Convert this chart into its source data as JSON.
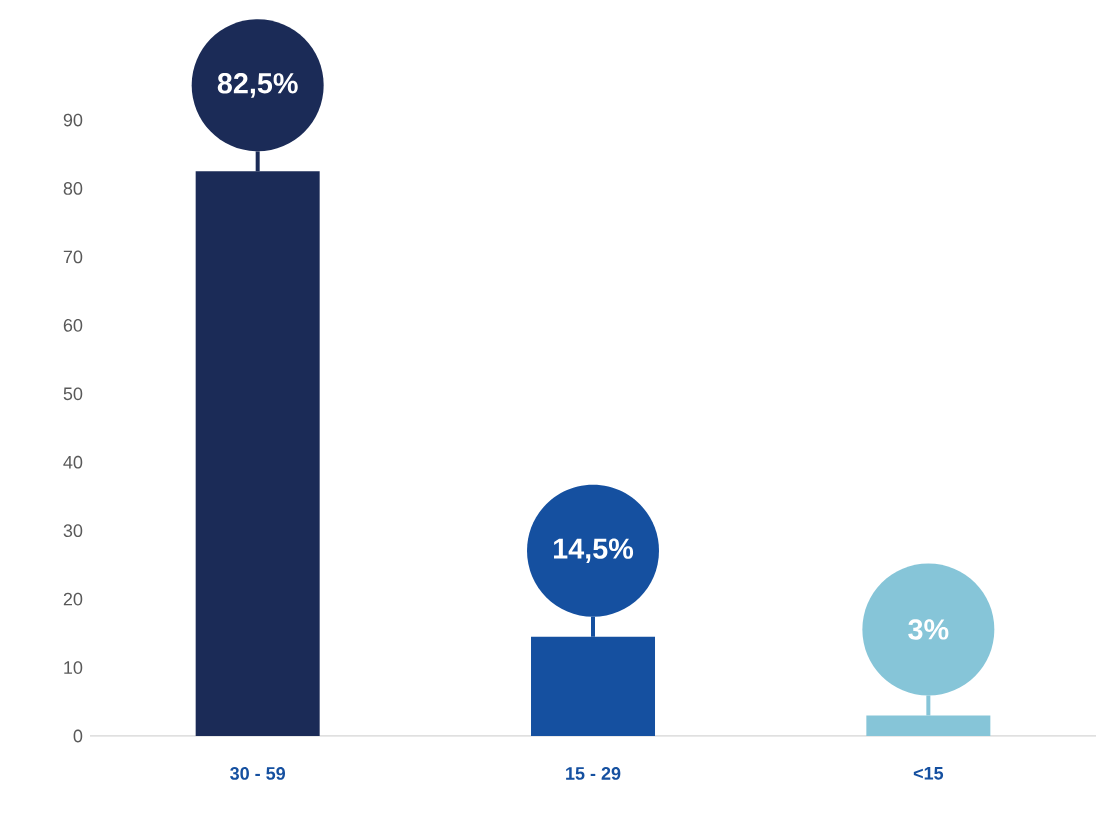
{
  "chart_data": {
    "type": "bar",
    "categories": [
      "30 - 59",
      "15 - 29",
      "<15"
    ],
    "values": [
      82.5,
      14.5,
      3
    ],
    "value_labels": [
      "82,5%",
      "14,5%",
      "3%"
    ],
    "colors": [
      "#1b2b57",
      "#1550a0",
      "#86c5d8"
    ],
    "ylim": [
      0,
      90
    ],
    "yticks": [
      0,
      10,
      20,
      30,
      40,
      50,
      60,
      70,
      80,
      90
    ],
    "grid": false
  }
}
